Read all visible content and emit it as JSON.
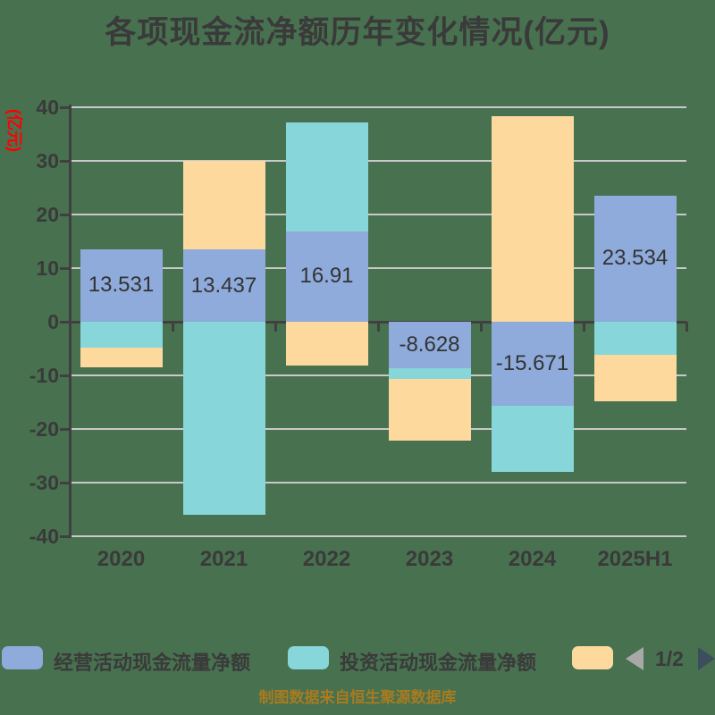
{
  "title": "各项现金流净额历年变化情况(亿元)",
  "y_axis_unit": "(亿元)",
  "footer": "制图数据来自恒生聚源数据库",
  "legend": {
    "items": [
      {
        "label": "经营活动现金流量净额",
        "color": "#8EABDB"
      },
      {
        "label": "投资活动现金流量净额",
        "color": "#86D6DA"
      },
      {
        "label": "",
        "color": "#FDD99D"
      }
    ],
    "pager": {
      "text": "1/2",
      "prev_icon": "left-triangle",
      "next_icon": "right-triangle",
      "prev_color": "#A8A8A8",
      "next_color": "#3C4D5E"
    }
  },
  "chart_data": {
    "type": "bar",
    "stacked": true,
    "title": "各项现金流净额历年变化情况(亿元)",
    "ylabel": "(亿元)",
    "ylim": [
      -40,
      40
    ],
    "yticks": [
      40,
      30,
      20,
      10,
      0,
      -10,
      -20,
      -30,
      -40
    ],
    "grid": true,
    "legend_position": "bottom",
    "categories": [
      "2020",
      "2021",
      "2022",
      "2023",
      "2024",
      "2025H1"
    ],
    "series": [
      {
        "name": "经营活动现金流量净额",
        "color": "#8EABDB",
        "values": [
          13.531,
          13.437,
          16.91,
          -8.628,
          -15.671,
          23.534
        ],
        "data_labels": [
          "13.531",
          "13.437",
          "16.91",
          "-8.628",
          "-15.671",
          "23.534"
        ]
      },
      {
        "name": "投资活动现金流量净额",
        "color": "#86D6DA",
        "values": [
          -4.9,
          -36.0,
          20.3,
          -2.0,
          -12.3,
          -6.1
        ],
        "data_labels": null
      },
      {
        "name": "",
        "color": "#FDD99D",
        "values": [
          -3.6,
          16.5,
          -8.1,
          -11.6,
          38.4,
          -8.7
        ],
        "data_labels": null
      }
    ]
  },
  "colors": {
    "background": "#487150",
    "grid_line": "#C9C9C9",
    "axis_line": "#404040",
    "text": "#3A3A3A",
    "y_unit_label": "#FF0000",
    "footer_text": "#A87B1F"
  }
}
